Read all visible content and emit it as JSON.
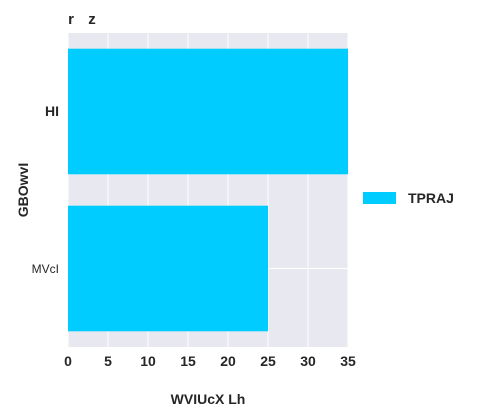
{
  "chart_data": {
    "type": "bar",
    "orientation": "horizontal",
    "top_labels": [
      "r",
      "z"
    ],
    "categories": [
      "HI",
      "MVcI"
    ],
    "category_label_styles": [
      "bold",
      "normal"
    ],
    "series": [
      {
        "name": "TPRAJ",
        "values": [
          35,
          25
        ],
        "color": "#00CCFF"
      }
    ],
    "xlabel": "WVIUcX Lh",
    "ylabel": "GBOwvI",
    "xlim": [
      0,
      35
    ],
    "xticks": [
      0,
      5,
      10,
      15,
      20,
      25,
      30,
      35
    ],
    "grid": true,
    "plot_background": "#E8E8F0",
    "grid_color": "#FFFFFF",
    "legend_position": "right"
  }
}
